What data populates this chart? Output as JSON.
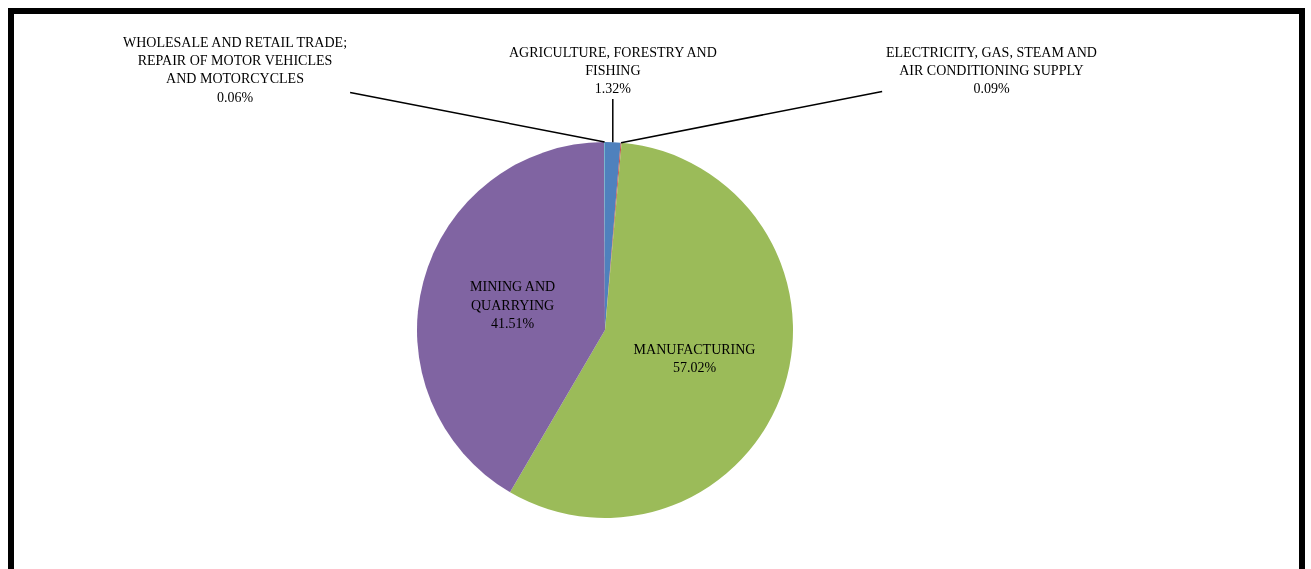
{
  "chart_data": {
    "type": "pie",
    "categories": [
      "AGRICULTURE, FORESTRY AND FISHING",
      "ELECTRICITY, GAS, STEAM AND AIR CONDITIONING SUPPLY",
      "MANUFACTURING",
      "MINING AND QUARRYING",
      "WHOLESALE AND RETAIL TRADE; REPAIR OF MOTOR VEHICLES AND MOTORCYCLES"
    ],
    "values": [
      1.32,
      0.09,
      57.02,
      41.51,
      0.06
    ],
    "colors": [
      "#4f81bd",
      "#c0504d",
      "#9bbb59",
      "#8064a2",
      "#4bacc6"
    ],
    "value_labels": [
      "1.32%",
      "0.09%",
      "57.02%",
      "41.51%",
      "0.06%"
    ]
  }
}
